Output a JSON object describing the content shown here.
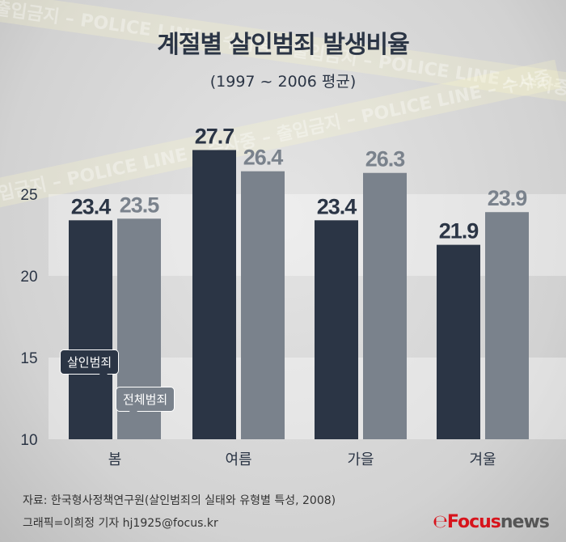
{
  "background_tape": "출입금지 – POLICE LINE – 수사중 – 출입금지 – POLICE LINE – 수사중",
  "colors": {
    "murder": "#2b3545",
    "total": "#7a828c",
    "logo_red": "#d7141c",
    "logo_gray": "#555555"
  },
  "chart_data": {
    "type": "bar",
    "title": "계절별 살인범죄 발생비율",
    "subtitle": "(1997 ~ 2006 평균)",
    "categories": [
      "봄",
      "여름",
      "가을",
      "겨울"
    ],
    "series": [
      {
        "name": "살인범죄",
        "values": [
          23.4,
          27.7,
          23.4,
          21.9
        ],
        "labels": [
          "23.4",
          "27.7",
          "23.4",
          "21.9"
        ]
      },
      {
        "name": "전체범죄",
        "values": [
          23.5,
          26.4,
          26.3,
          23.9
        ],
        "labels": [
          "23.5",
          "26.4",
          "26.3",
          "23.9"
        ]
      }
    ],
    "ylim": [
      10,
      30
    ],
    "yticks": [
      "10",
      "15",
      "20",
      "25"
    ],
    "legend_placement": "inside first bars, bottom-left",
    "grid": "alternating horizontal bands"
  },
  "footer": {
    "source": "자료: 한국형사정책연구원(살인범죄의 실태와 유형별 특성, 2008)",
    "credit": "그래픽=이희정 기자 hj1925@focus.kr",
    "logo_focus": "Focus",
    "logo_news": "news"
  }
}
